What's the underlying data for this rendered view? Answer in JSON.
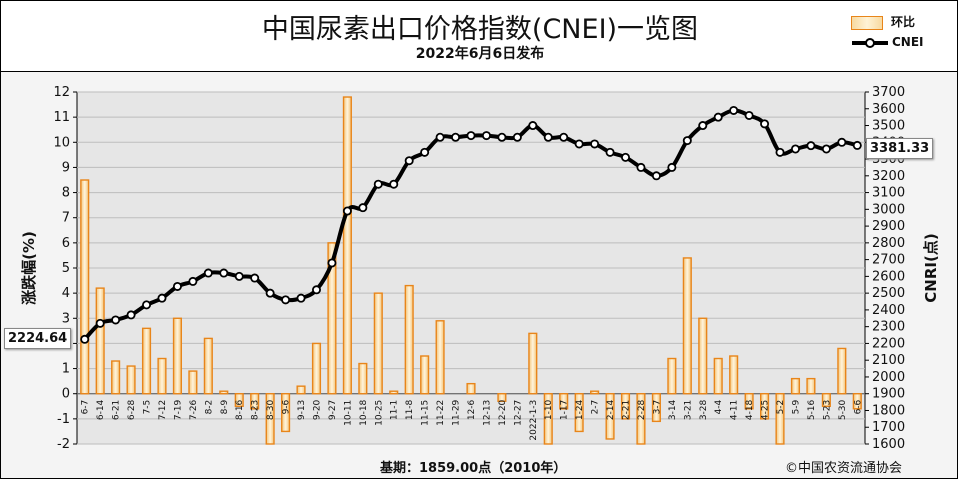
{
  "header": {
    "title": "中国尿素出口价格指数(CNEI)一览图",
    "subtitle": "2022年6月6日发布"
  },
  "legend": {
    "bar_label": "环比",
    "line_label": "CNEI"
  },
  "footer": {
    "base_text": "基期：1859.00点（2010年）",
    "copyright": "©中国农资流通协会"
  },
  "callouts": {
    "first_value": "2224.64",
    "last_value": "3381.33"
  },
  "colors": {
    "bar_fill": "#f7d9a0",
    "bar_stroke": "#e8851a",
    "line": "#000000",
    "grid": "#bdbdbd",
    "plot_bg": "#e6e6e6"
  },
  "chart_data": {
    "type": "bar",
    "title": "中国尿素出口价格指数(CNEI)一览图",
    "subtitle": "2022年6月6日发布",
    "ylabel_left": "涨跌幅(%)",
    "ylabel_right": "CNRI(点)",
    "ylim_left": [
      -2,
      12
    ],
    "ylim_right": [
      1600,
      3700
    ],
    "yticks_left": [
      -2,
      -1,
      0,
      1,
      2,
      3,
      4,
      5,
      6,
      7,
      8,
      9,
      10,
      11,
      12
    ],
    "yticks_right": [
      1600,
      1700,
      1800,
      1900,
      2000,
      2100,
      2200,
      2300,
      2400,
      2500,
      2600,
      2700,
      2800,
      2900,
      3000,
      3100,
      3200,
      3300,
      3400,
      3500,
      3600,
      3700
    ],
    "grid": true,
    "legend_position": "top-right",
    "categories": [
      "6-7",
      "6-14",
      "6-21",
      "6-28",
      "7-5",
      "7-12",
      "7-19",
      "7-26",
      "8-2",
      "8-9",
      "8-16",
      "8-23",
      "8-30",
      "9-6",
      "9-13",
      "9-20",
      "9-27",
      "10-11",
      "10-18",
      "10-25",
      "11-1",
      "11-8",
      "11-15",
      "11-22",
      "11-29",
      "12-6",
      "12-13",
      "12-20",
      "12-27",
      "2022-1-3",
      "1-10",
      "1-17",
      "1-24",
      "2-7",
      "2-14",
      "2-21",
      "2-28",
      "3-7",
      "3-14",
      "3-21",
      "3-28",
      "4-4",
      "4-11",
      "4-18",
      "4-25",
      "5-2",
      "5-9",
      "5-16",
      "5-23",
      "5-30",
      "6-6"
    ],
    "series": [
      {
        "name": "环比",
        "type": "bar",
        "axis": "left",
        "values": [
          8.5,
          4.2,
          1.3,
          1.1,
          2.6,
          1.4,
          3.0,
          0.9,
          2.2,
          0.1,
          -0.5,
          -0.6,
          -2.0,
          -1.5,
          0.3,
          2.0,
          6.0,
          11.8,
          1.2,
          4.0,
          0.1,
          4.3,
          1.5,
          2.9,
          0.0,
          0.4,
          0.0,
          -0.3,
          0.0,
          2.4,
          -2.0,
          -0.6,
          -1.5,
          0.1,
          -1.8,
          -1.0,
          -2.0,
          -1.1,
          1.4,
          5.4,
          3.0,
          1.4,
          1.5,
          -0.6,
          -1.0,
          -2.0,
          0.6,
          0.6,
          -0.5,
          1.8,
          -0.6
        ]
      },
      {
        "name": "CNEI",
        "type": "line",
        "axis": "right",
        "values": [
          2224.64,
          2320,
          2340,
          2370,
          2430,
          2470,
          2540,
          2570,
          2620,
          2620,
          2600,
          2590,
          2500,
          2460,
          2470,
          2520,
          2680,
          2990,
          3010,
          3150,
          3150,
          3290,
          3340,
          3430,
          3430,
          3440,
          3440,
          3430,
          3430,
          3500,
          3430,
          3430,
          3390,
          3390,
          3340,
          3310,
          3250,
          3200,
          3250,
          3410,
          3500,
          3550,
          3590,
          3560,
          3510,
          3340,
          3360,
          3380,
          3360,
          3400,
          3381.33
        ]
      }
    ]
  }
}
